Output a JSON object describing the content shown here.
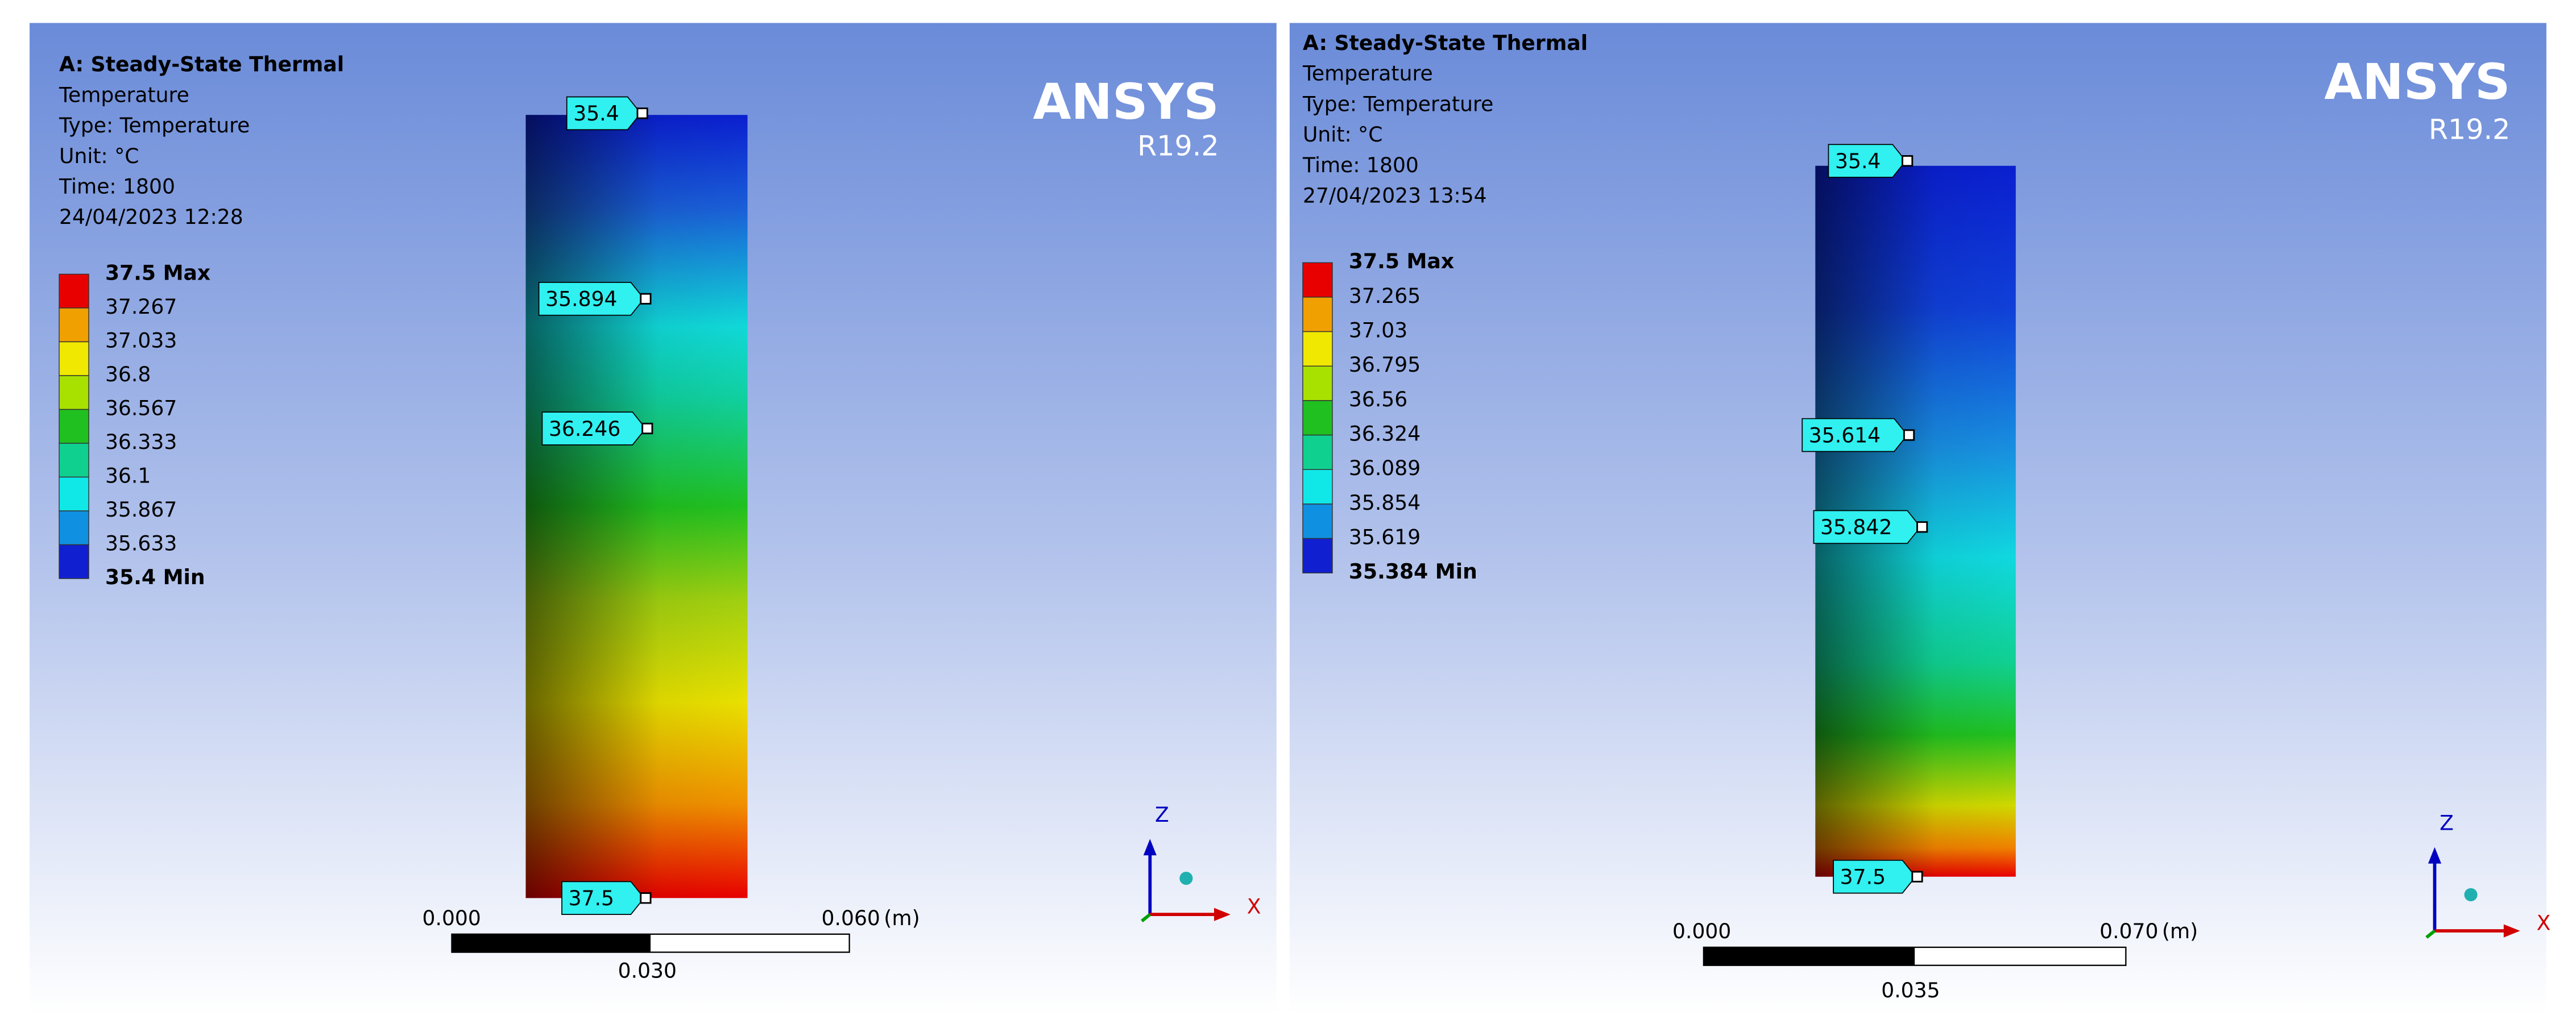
{
  "panels": [
    {
      "header": [
        "A: Steady-State Thermal",
        "Temperature",
        "Type: Temperature",
        "Unit: °C",
        "Time: 1800",
        "24/04/2023 12:28"
      ],
      "legend": [
        "37.5 Max",
        "37.267",
        "37.033",
        "36.8",
        "36.567",
        "36.333",
        "36.1",
        "35.867",
        "35.633",
        "35.4 Min"
      ],
      "probes": [
        "35.4",
        "35.894",
        "36.246",
        "37.5"
      ],
      "logo": "ANSYS",
      "version": "R19.2",
      "scale": {
        "left": "0.000",
        "right": "0.060",
        "unit": "(m)",
        "middle": "0.030"
      },
      "axes": {
        "z": "Z",
        "x": "X"
      }
    },
    {
      "header": [
        "A: Steady-State Thermal",
        "Temperature",
        "Type: Temperature",
        "Unit: °C",
        "Time: 1800",
        "27/04/2023 13:54"
      ],
      "legend": [
        "37.5 Max",
        "37.265",
        "37.03",
        "36.795",
        "36.56",
        "36.324",
        "36.089",
        "35.854",
        "35.619",
        "35.384 Min"
      ],
      "probes": [
        "35.4",
        "35.614",
        "35.842",
        "37.5"
      ],
      "logo": "ANSYS",
      "version": "R19.2",
      "scale": {
        "left": "0.000",
        "right": "0.070",
        "unit": "(m)",
        "middle": "0.035"
      },
      "axes": {
        "z": "Z",
        "x": "X"
      }
    }
  ]
}
